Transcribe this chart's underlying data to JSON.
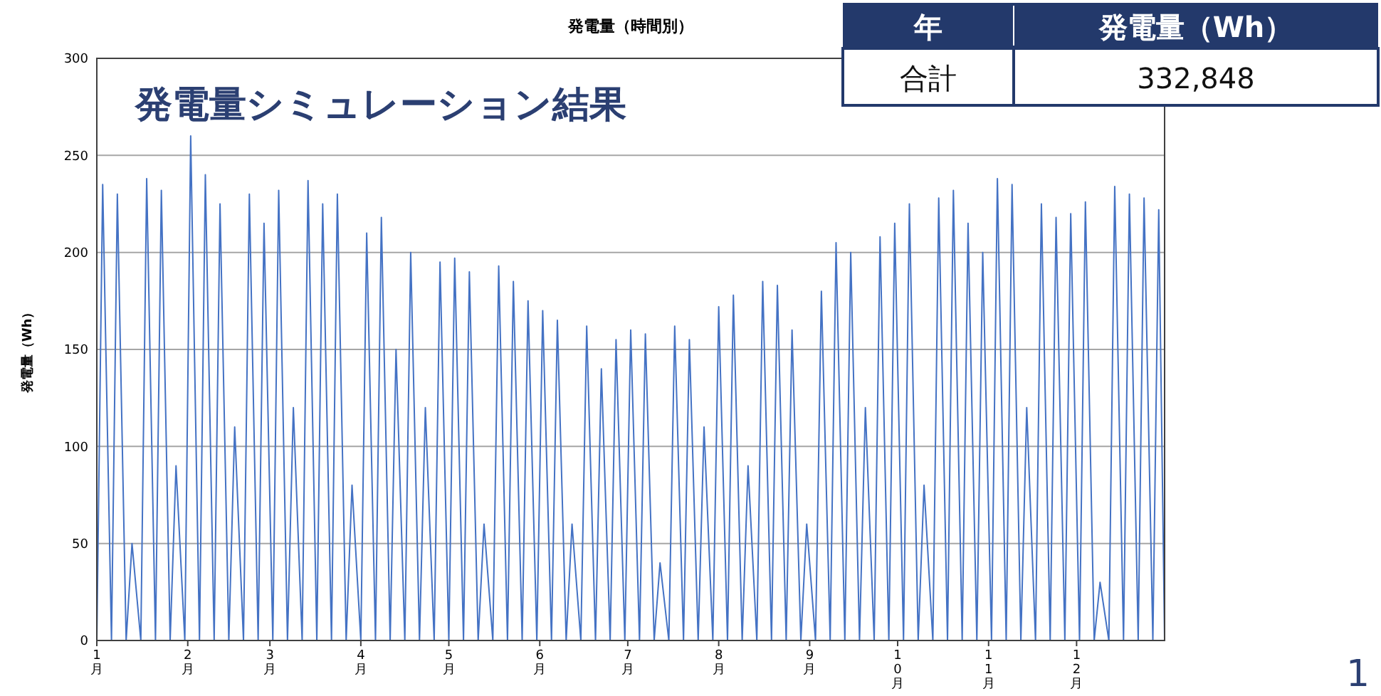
{
  "chart_data": [
    {
      "type": "line",
      "title": "発電量（時間別）",
      "subtitle": "発電量シミュレーション結果",
      "ylabel": "発電量（Wh）",
      "x": [
        "--01-01",
        "--01-03",
        "--01-06",
        "--01-08",
        "--01-11",
        "--01-13",
        "--01-16",
        "--01-18",
        "--01-21",
        "--01-23",
        "--01-26",
        "--01-28",
        "--01-31",
        "--02-02",
        "--02-05",
        "--02-07",
        "--02-10",
        "--02-12",
        "--02-15",
        "--02-17",
        "--02-20",
        "--02-22",
        "--02-25",
        "--02-27",
        "--03-02",
        "--03-04",
        "--03-07",
        "--03-09",
        "--03-12",
        "--03-14",
        "--03-17",
        "--03-19",
        "--03-22",
        "--03-24",
        "--03-27",
        "--03-29",
        "--04-01",
        "--04-03",
        "--04-06",
        "--04-08",
        "--04-11",
        "--04-13",
        "--04-16",
        "--04-18",
        "--04-21",
        "--04-23",
        "--04-26",
        "--04-28",
        "--05-01",
        "--05-03",
        "--05-06",
        "--05-08",
        "--05-11",
        "--05-13",
        "--05-16",
        "--05-18",
        "--05-21",
        "--05-23",
        "--05-26",
        "--05-28",
        "--05-31",
        "--06-02",
        "--06-05",
        "--06-07",
        "--06-10",
        "--06-12",
        "--06-15",
        "--06-17",
        "--06-20",
        "--06-22",
        "--06-25",
        "--06-27",
        "--06-30",
        "--07-02",
        "--07-05",
        "--07-07",
        "--07-10",
        "--07-12",
        "--07-15",
        "--07-17",
        "--07-20",
        "--07-22",
        "--07-25",
        "--07-27",
        "--07-30",
        "--08-01",
        "--08-04",
        "--08-06",
        "--08-09",
        "--08-11",
        "--08-14",
        "--08-16",
        "--08-19",
        "--08-21",
        "--08-24",
        "--08-26",
        "--08-29",
        "--08-31",
        "--09-03",
        "--09-05",
        "--09-08",
        "--09-10",
        "--09-13",
        "--09-15",
        "--09-18",
        "--09-20",
        "--09-23",
        "--09-25",
        "--09-28",
        "--09-30",
        "--10-03",
        "--10-05",
        "--10-08",
        "--10-10",
        "--10-13",
        "--10-15",
        "--10-18",
        "--10-20",
        "--10-23",
        "--10-25",
        "--10-28",
        "--10-30",
        "--11-02",
        "--11-04",
        "--11-07",
        "--11-09",
        "--11-12",
        "--11-14",
        "--11-17",
        "--11-19",
        "--11-22",
        "--11-24",
        "--11-27",
        "--11-29",
        "--12-02",
        "--12-04",
        "--12-07",
        "--12-09",
        "--12-12",
        "--12-14",
        "--12-17",
        "--12-19",
        "--12-22",
        "--12-24",
        "--12-27",
        "--12-29",
        "--12-31"
      ],
      "series": [
        {
          "color": "#4472c4",
          "values": [
            0,
            235,
            0,
            230,
            0,
            50,
            0,
            238,
            0,
            232,
            0,
            90,
            0,
            260,
            0,
            240,
            0,
            225,
            0,
            110,
            0,
            230,
            0,
            215,
            0,
            232,
            0,
            120,
            0,
            237,
            0,
            225,
            0,
            230,
            0,
            80,
            0,
            210,
            0,
            218,
            0,
            150,
            0,
            200,
            0,
            120,
            0,
            195,
            0,
            197,
            0,
            190,
            0,
            60,
            0,
            193,
            0,
            185,
            0,
            175,
            0,
            170,
            0,
            165,
            0,
            60,
            0,
            162,
            0,
            140,
            0,
            155,
            0,
            160,
            0,
            158,
            0,
            40,
            0,
            162,
            0,
            155,
            0,
            110,
            0,
            172,
            0,
            178,
            0,
            90,
            0,
            185,
            0,
            183,
            0,
            160,
            0,
            60,
            0,
            180,
            0,
            205,
            0,
            200,
            0,
            120,
            0,
            208,
            0,
            215,
            0,
            225,
            0,
            80,
            0,
            228,
            0,
            232,
            0,
            215,
            0,
            200,
            0,
            238,
            0,
            235,
            0,
            120,
            0,
            225,
            0,
            218,
            0,
            220,
            0,
            226,
            0,
            30,
            0,
            234,
            0,
            230,
            0,
            228,
            0,
            222,
            0
          ]
        }
      ],
      "xlim": [
        "--01-01",
        "--12-31"
      ],
      "xticks": [
        {
          "value": "--01-01",
          "label": "1月"
        },
        {
          "value": "--02-01",
          "label": "2月"
        },
        {
          "value": "--03-01",
          "label": "3月"
        },
        {
          "value": "--04-01",
          "label": "4月"
        },
        {
          "value": "--05-01",
          "label": "5月"
        },
        {
          "value": "--06-01",
          "label": "6月"
        },
        {
          "value": "--07-01",
          "label": "7月"
        },
        {
          "value": "--08-01",
          "label": "8月"
        },
        {
          "value": "--09-01",
          "label": "9月"
        },
        {
          "value": "--10-01",
          "label": "10月"
        },
        {
          "value": "--11-01",
          "label": "11月"
        },
        {
          "value": "--12-01",
          "label": "12月"
        }
      ],
      "ylim": [
        0,
        300
      ],
      "yticks": [
        0,
        50,
        100,
        150,
        200,
        250,
        300
      ],
      "grid": "y",
      "marker": "none",
      "line_style": "solid",
      "annotations": [
        "1"
      ]
    },
    {
      "type": "other",
      "annotations": [
        "年",
        "発電量（Wh）",
        "合計",
        "332,848"
      ]
    }
  ]
}
